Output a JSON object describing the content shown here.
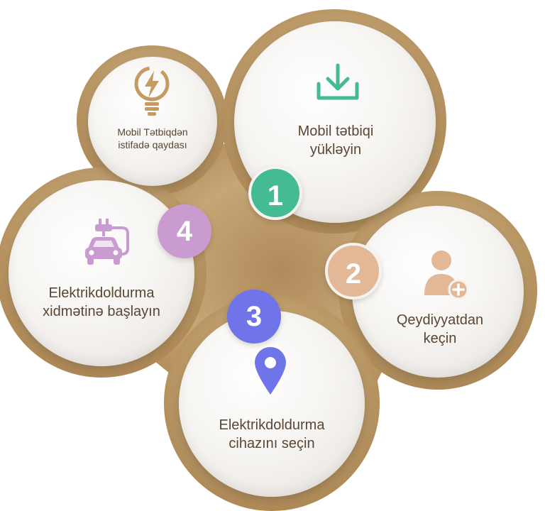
{
  "colors": {
    "gold": "#b48f5f",
    "badge1": "#45bb94",
    "badge2": "#e3b896",
    "badge3": "#6f75e8",
    "badge4": "#c99bd0",
    "icon_download": "#45bb94",
    "icon_user": "#e3b896",
    "icon_pin": "#6f75e8",
    "icon_car": "#c99bd0",
    "icon_bulb": "#c59a63"
  },
  "intro": {
    "label": "Mobil Tətbiqdən istifadə qaydası",
    "icon": "bulb-bolt-icon"
  },
  "steps": [
    {
      "number": "1",
      "label": "Mobil tətbiqi yükləyin",
      "icon": "download-icon"
    },
    {
      "number": "2",
      "label": "Qeydiyyatdan keçin",
      "icon": "user-add-icon"
    },
    {
      "number": "3",
      "label": "Elektrikdoldurma cihazını seçin",
      "icon": "location-pin-icon"
    },
    {
      "number": "4",
      "label": "Elektrikdoldurma xidmətinə başlayın",
      "icon": "ev-charging-car-icon"
    }
  ]
}
